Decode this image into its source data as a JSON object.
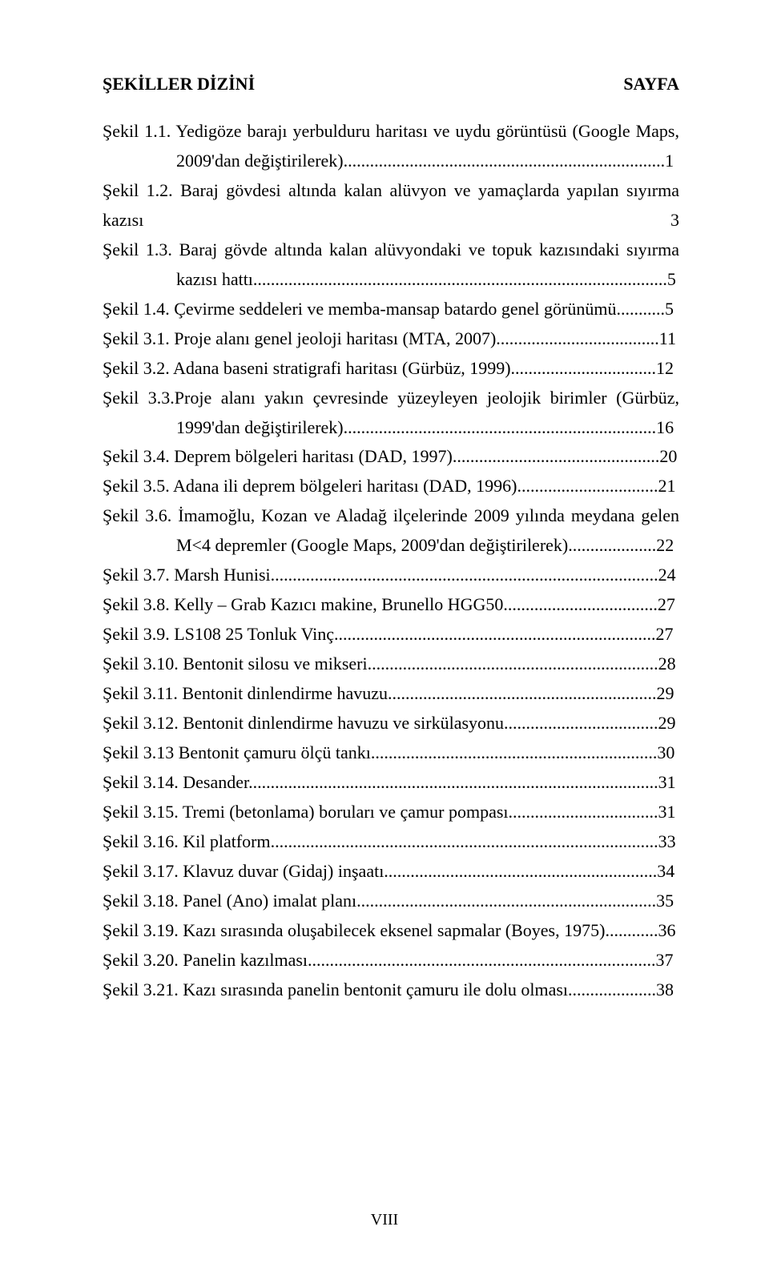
{
  "title_left": "ŞEKİLLER DİZİNİ",
  "title_right": "SAYFA",
  "entries": [
    {
      "label": "Şekil 1.1.",
      "text": "Yedigöze barajı yerbulduru haritası ve uydu görüntüsü (Google Maps, 2009'dan değiştirilerek).",
      "page": "1",
      "wrap": true
    },
    {
      "label": "Şekil 1.2.",
      "text": "Baraj gövdesi altında kalan alüvyon ve yamaçlarda yapılan sıyırma kazısı",
      "page": "3",
      "wrap": true,
      "label2": "Şekil 1.3.",
      "text2": "Baraj gövde altında kalan alüvyondaki ve topuk kazısındaki sıyırma kazısı hattı.",
      "page2": "5"
    },
    {
      "label": "Şekil 1.4.",
      "text": "Çevirme seddeleri ve memba-mansap batardo genel görünümü.",
      "page": "5"
    },
    {
      "label": "Şekil 3.1.",
      "text": "Proje alanı genel jeoloji haritası (MTA, 2007)",
      "page": "11"
    },
    {
      "label": "Şekil 3.2.",
      "text": "Adana baseni stratigrafi haritası (Gürbüz, 1999).",
      "page": "12"
    },
    {
      "label": "Şekil 3.3.",
      "text": "Proje alanı yakın çevresinde yüzeyleyen jeolojik birimler (Gürbüz, 1999'dan değiştirilerek)",
      "page": "16",
      "wrap": true,
      "nospace": true
    },
    {
      "label": "Şekil 3.4.",
      "text": "Deprem bölgeleri haritası (DAD, 1997).",
      "page": "20"
    },
    {
      "label": "Şekil 3.5.",
      "text": "Adana ili deprem bölgeleri haritası (DAD, 1996).",
      "page": "21"
    },
    {
      "label": "Şekil 3.6.",
      "text": "İmamoğlu, Kozan ve Aladağ ilçelerinde 2009 yılında meydana gelen M<4 depremler (Google Maps, 2009'dan değiştirilerek).",
      "page": "22",
      "wrap": true
    },
    {
      "label": "Şekil 3.7.",
      "text": "Marsh Hunisi",
      "page": "24"
    },
    {
      "label": "Şekil 3.8.",
      "text": "Kelly – Grab Kazıcı makine, Brunello HGG50",
      "page": "27"
    },
    {
      "label": "Şekil 3.9.",
      "text": "LS108 25 Tonluk Vinç.",
      "page": "27"
    },
    {
      "label": "Şekil 3.10.",
      "text": "Bentonit silosu ve mikseri",
      "page": "28"
    },
    {
      "label": "Şekil 3.11.",
      "text": "Bentonit dinlendirme havuzu.",
      "page": "29"
    },
    {
      "label": "Şekil 3.12.",
      "text": "Bentonit dinlendirme havuzu ve sirkülasyonu.",
      "page": "29"
    },
    {
      "label": "Şekil 3.13",
      "text": "Bentonit çamuru ölçü tankı.",
      "page": "30"
    },
    {
      "label": "Şekil 3.14.",
      "text": "Desander",
      "page": "31"
    },
    {
      "label": "Şekil 3.15.",
      "text": "Tremi (betonlama) boruları ve çamur pompası.",
      "page": "31"
    },
    {
      "label": "Şekil 3.16.",
      "text": "Kil platform",
      "page": "33"
    },
    {
      "label": "Şekil 3.17.",
      "text": "Klavuz duvar (Gidaj) inşaatı.",
      "page": "34"
    },
    {
      "label": "Şekil 3.18.",
      "text": "Panel (Ano) imalat planı.",
      "page": "35"
    },
    {
      "label": "Şekil 3.19.",
      "text": "Kazı sırasında oluşabilecek eksenel sapmalar (Boyes, 1975).",
      "page": "36"
    },
    {
      "label": "Şekil 3.20.",
      "text": "Panelin kazılması",
      "page": "37"
    },
    {
      "label": "Şekil 3.21.",
      "text": "Kazı sırasında panelin bentonit çamuru ile dolu olması.",
      "page": "38"
    }
  ],
  "footer": "VIII"
}
